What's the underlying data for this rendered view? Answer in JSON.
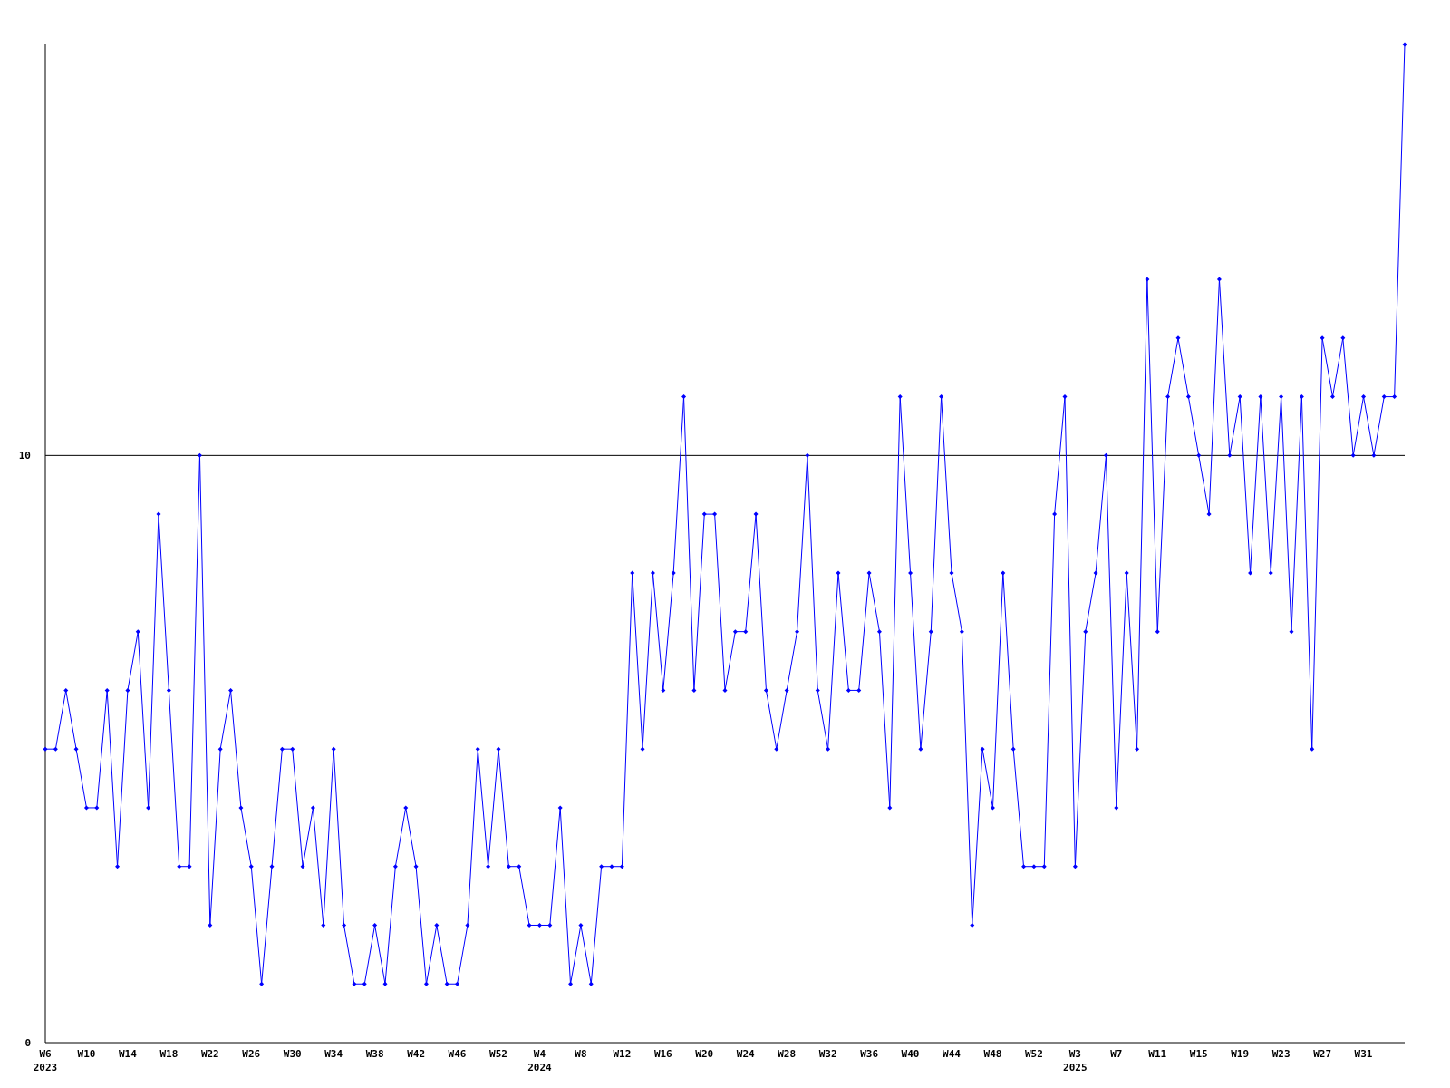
{
  "chart_data": {
    "type": "line",
    "categories": [
      "W6\n2023",
      null,
      null,
      null,
      "W10",
      null,
      null,
      null,
      "W14",
      null,
      null,
      null,
      "W18",
      null,
      null,
      null,
      "W22",
      null,
      null,
      null,
      "W26",
      null,
      null,
      null,
      "W30",
      null,
      null,
      null,
      "W34",
      null,
      null,
      null,
      "W38",
      null,
      null,
      null,
      "W42",
      null,
      null,
      null,
      "W46",
      null,
      null,
      null,
      "W52",
      null,
      null,
      null,
      "W4\n2024",
      null,
      null,
      null,
      "W8",
      null,
      null,
      null,
      "W12",
      null,
      null,
      null,
      "W16",
      null,
      null,
      null,
      "W20",
      null,
      null,
      null,
      "W24",
      null,
      null,
      null,
      "W28",
      null,
      null,
      null,
      "W32",
      null,
      null,
      null,
      "W36",
      null,
      null,
      null,
      "W40",
      null,
      null,
      null,
      "W44",
      null,
      null,
      null,
      "W48",
      null,
      null,
      null,
      "W52",
      null,
      null,
      null,
      "W3\n2025",
      null,
      null,
      null,
      "W7",
      null,
      null,
      null,
      "W11",
      null,
      null,
      null,
      "W15",
      null,
      null,
      null,
      "W19",
      null,
      null,
      null,
      "W23",
      null,
      null,
      null,
      "W27",
      null,
      null,
      null,
      "W31",
      null,
      null,
      null,
      null
    ],
    "series": [
      {
        "color": "#0000ff",
        "values": [
          5,
          5,
          6,
          5,
          4,
          4,
          6,
          3,
          6,
          7,
          4,
          9,
          6,
          3,
          3,
          10,
          2,
          5,
          6,
          4,
          3,
          1,
          3,
          5,
          5,
          3,
          4,
          2,
          5,
          2,
          1,
          1,
          2,
          1,
          3,
          4,
          3,
          1,
          2,
          1,
          1,
          2,
          5,
          3,
          5,
          3,
          3,
          2,
          2,
          2,
          4,
          1,
          2,
          1,
          3,
          3,
          3,
          8,
          5,
          8,
          6,
          8,
          11,
          6,
          9,
          9,
          6,
          7,
          7,
          9,
          6,
          5,
          6,
          7,
          10,
          6,
          5,
          8,
          6,
          6,
          8,
          7,
          4,
          11,
          8,
          5,
          7,
          11,
          8,
          7,
          2,
          5,
          4,
          8,
          5,
          3,
          3,
          3,
          9,
          11,
          3,
          7,
          8,
          10,
          4,
          8,
          5,
          13,
          7,
          11,
          12,
          11,
          10,
          9,
          13,
          10,
          11,
          8,
          11,
          8,
          11,
          7,
          11,
          5,
          12,
          11,
          12,
          10,
          11,
          10,
          11,
          11,
          17
        ]
      }
    ],
    "ylim": [
      0,
      17
    ],
    "yticks": [
      0,
      10
    ],
    "grid": "y",
    "marker": "diamond",
    "line_style": "solid"
  }
}
